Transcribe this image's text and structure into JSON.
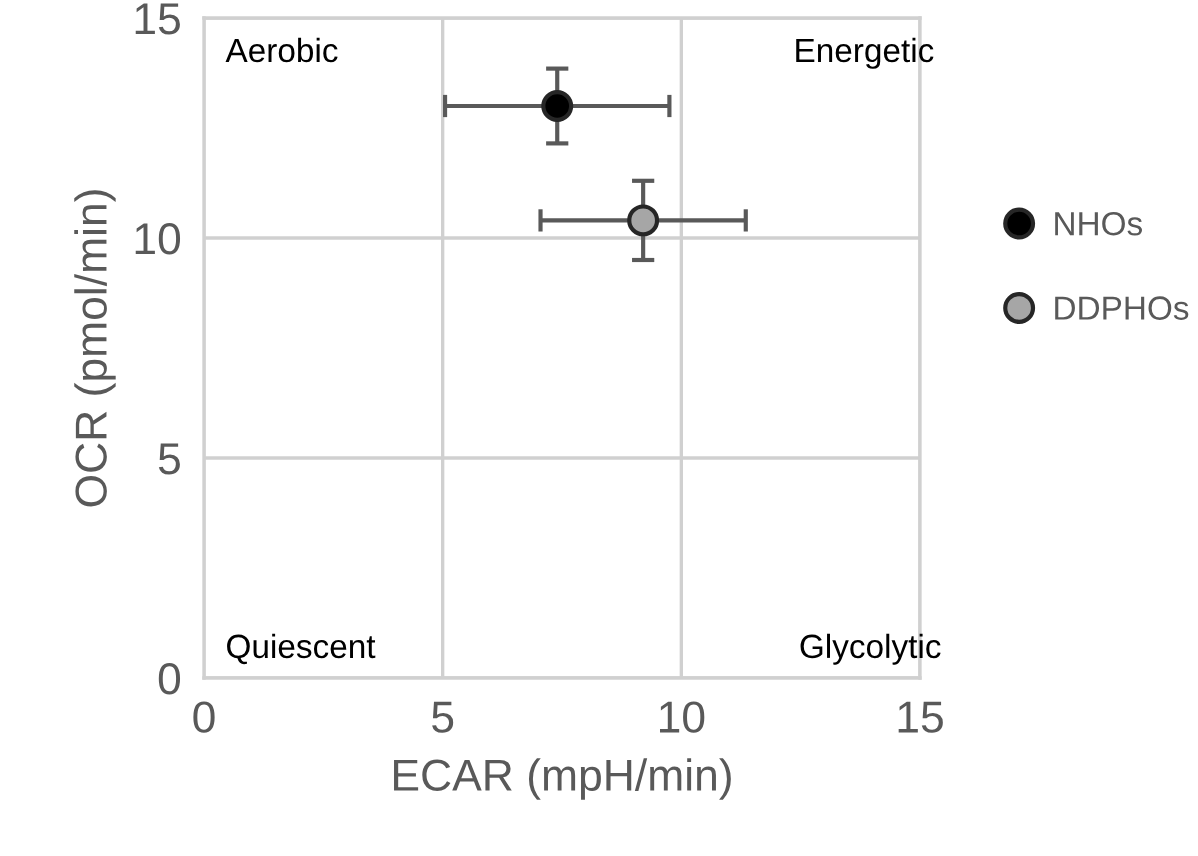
{
  "chart_data": {
    "type": "scatter",
    "xlabel": "ECAR (mpH/min)",
    "ylabel": "OCR (pmol/min)",
    "xlim": [
      0,
      15
    ],
    "ylim": [
      0,
      15
    ],
    "xticks": [
      0,
      5,
      10,
      15
    ],
    "yticks": [
      0,
      5,
      10,
      15
    ],
    "grid": true,
    "legend": "right",
    "marker": "circle",
    "annotations": [
      "Aerobic",
      "Energetic",
      "Quiescent",
      "Glycolytic"
    ],
    "series": [
      {
        "name": "NHOs",
        "color": "#000000",
        "x": [
          7.4
        ],
        "values": [
          13.0
        ],
        "errors": [
          0.85
        ],
        "xerrors": [
          2.35
        ]
      },
      {
        "name": "DDPHOs",
        "color": "#a6a6a6",
        "x": [
          9.2
        ],
        "values": [
          10.4
        ],
        "errors": [
          0.9
        ],
        "xerrors": [
          2.15
        ]
      }
    ]
  }
}
